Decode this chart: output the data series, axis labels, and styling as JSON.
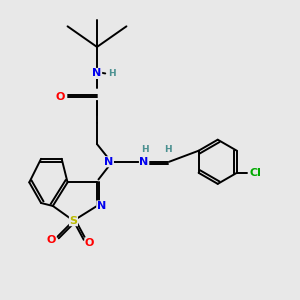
{
  "bg_color": "#e8e8e8",
  "fig_size": [
    3.0,
    3.0
  ],
  "dpi": 100,
  "atom_colors": {
    "C": "#000000",
    "N": "#0000ee",
    "O": "#ff0000",
    "S": "#bbbb00",
    "Cl": "#00aa00",
    "H": "#4a9090"
  },
  "bond_color": "#000000",
  "bond_width": 1.4,
  "font_size_atom": 8,
  "font_size_small": 6.5
}
